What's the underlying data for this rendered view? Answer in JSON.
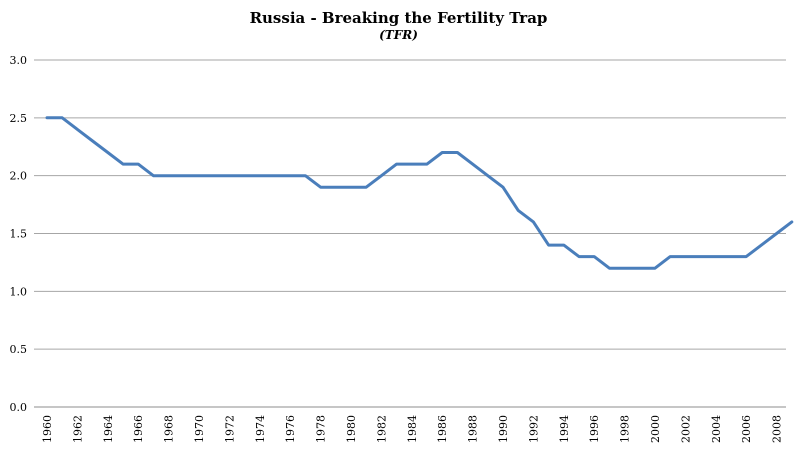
{
  "chart_data": {
    "type": "line",
    "title": "Russia - Breaking the Fertility Trap",
    "subtitle": "(TFR)",
    "xlabel": "",
    "ylabel": "",
    "ylim": [
      0,
      3.0
    ],
    "yticks": [
      "0.0",
      "0.5",
      "1.0",
      "1.5",
      "2.0",
      "2.5",
      "3.0"
    ],
    "xticks": [
      "1960",
      "1962",
      "1964",
      "1966",
      "1968",
      "1970",
      "1972",
      "1974",
      "1976",
      "1978",
      "1980",
      "1982",
      "1984",
      "1986",
      "1988",
      "1990",
      "1992",
      "1994",
      "1996",
      "1998",
      "2000",
      "2002",
      "2004",
      "2006",
      "2008"
    ],
    "grid": true,
    "legend": "none",
    "line_color": "#4a7ebb",
    "x": [
      1960,
      1961,
      1962,
      1963,
      1964,
      1965,
      1966,
      1967,
      1968,
      1969,
      1970,
      1971,
      1972,
      1973,
      1974,
      1975,
      1976,
      1977,
      1978,
      1979,
      1980,
      1981,
      1982,
      1983,
      1984,
      1985,
      1986,
      1987,
      1988,
      1989,
      1990,
      1991,
      1992,
      1993,
      1994,
      1995,
      1996,
      1997,
      1998,
      1999,
      2000,
      2001,
      2002,
      2003,
      2004,
      2005,
      2006,
      2007,
      2008,
      2009
    ],
    "values": [
      2.5,
      2.5,
      2.4,
      2.3,
      2.2,
      2.1,
      2.1,
      2.0,
      2.0,
      2.0,
      2.0,
      2.0,
      2.0,
      2.0,
      2.0,
      2.0,
      2.0,
      2.0,
      1.9,
      1.9,
      1.9,
      1.9,
      2.0,
      2.1,
      2.1,
      2.1,
      2.2,
      2.2,
      2.1,
      2.0,
      1.9,
      1.7,
      1.6,
      1.4,
      1.4,
      1.3,
      1.3,
      1.2,
      1.2,
      1.2,
      1.2,
      1.3,
      1.3,
      1.3,
      1.3,
      1.3,
      1.3,
      1.4,
      1.5,
      1.6
    ]
  }
}
